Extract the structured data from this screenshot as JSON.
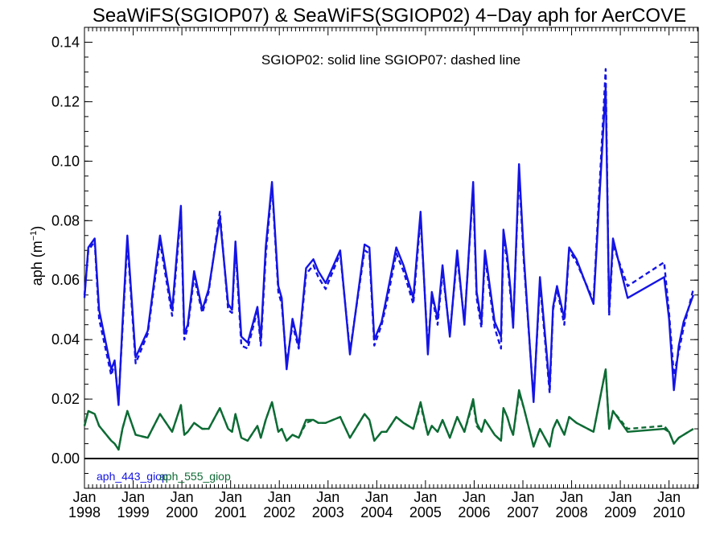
{
  "chart_data": {
    "type": "line",
    "title": "SeaWiFS(SGIOP07) & SeaWiFS(SGIOP02) 4−Day aph for AerCOVE",
    "annotation": "SGIOP02: solid line   SGIOP07: dashed line",
    "ylabel": "aph (m",
    "ylabel_sup": "−1",
    "ylabel_close": ")",
    "xlim": [
      1998.0,
      2010.6
    ],
    "ylim": [
      -0.01,
      0.145
    ],
    "grid": false,
    "zero_line": true,
    "x_ticks": [
      {
        "value": 1998,
        "line1": "Jan",
        "line2": "1998"
      },
      {
        "value": 1999,
        "line1": "Jan",
        "line2": "1999"
      },
      {
        "value": 2000,
        "line1": "Jan",
        "line2": "2000"
      },
      {
        "value": 2001,
        "line1": "Jan",
        "line2": "2001"
      },
      {
        "value": 2002,
        "line1": "Jan",
        "line2": "2002"
      },
      {
        "value": 2003,
        "line1": "Jan",
        "line2": "2003"
      },
      {
        "value": 2004,
        "line1": "Jan",
        "line2": "2004"
      },
      {
        "value": 2005,
        "line1": "Jan",
        "line2": "2005"
      },
      {
        "value": 2006,
        "line1": "Jan",
        "line2": "2006"
      },
      {
        "value": 2007,
        "line1": "Jan",
        "line2": "2007"
      },
      {
        "value": 2008,
        "line1": "Jan",
        "line2": "2008"
      },
      {
        "value": 2009,
        "line1": "Jan",
        "line2": "2009"
      },
      {
        "value": 2010,
        "line1": "Jan",
        "line2": "2010"
      }
    ],
    "y_ticks": [
      {
        "value": 0.0,
        "label": "0.00"
      },
      {
        "value": 0.02,
        "label": "0.02"
      },
      {
        "value": 0.04,
        "label": "0.04"
      },
      {
        "value": 0.06,
        "label": "0.06"
      },
      {
        "value": 0.08,
        "label": "0.08"
      },
      {
        "value": 0.1,
        "label": "0.10"
      },
      {
        "value": 0.12,
        "label": "0.12"
      },
      {
        "value": 0.14,
        "label": "0.14"
      }
    ],
    "legend": [
      {
        "label": "aph_443_giop",
        "color": "#1414e6"
      },
      {
        "label": "aph_555_giop",
        "color": "#0d6b34"
      }
    ],
    "series": [
      {
        "name": "aph_443_giop",
        "color": "#1414e6",
        "style": "solid",
        "x": [
          1998.0,
          1998.08,
          1998.21,
          1998.3,
          1998.55,
          1998.62,
          1998.7,
          1998.78,
          1998.88,
          1999.05,
          1999.3,
          1999.55,
          1999.8,
          1999.98,
          2000.05,
          2000.12,
          2000.25,
          2000.42,
          2000.55,
          2000.78,
          2000.95,
          2001.03,
          2001.1,
          2001.22,
          2001.35,
          2001.55,
          2001.62,
          2001.72,
          2001.85,
          2001.98,
          2002.05,
          2002.15,
          2002.27,
          2002.4,
          2002.55,
          2002.7,
          2002.8,
          2002.95,
          2003.25,
          2003.45,
          2003.75,
          2003.85,
          2003.95,
          2004.1,
          2004.2,
          2004.4,
          2004.55,
          2004.75,
          2004.9,
          2005.05,
          2005.13,
          2005.25,
          2005.35,
          2005.5,
          2005.65,
          2005.8,
          2005.98,
          2006.05,
          2006.15,
          2006.22,
          2006.42,
          2006.55,
          2006.6,
          2006.68,
          2006.75,
          2006.8,
          2006.92,
          2007.02,
          2007.22,
          2007.35,
          2007.55,
          2007.62,
          2007.7,
          2007.85,
          2007.95,
          2008.1,
          2008.45,
          2008.7,
          2008.77,
          2008.85,
          2009.15,
          2009.9,
          2010.0,
          2010.1,
          2010.2,
          2010.3,
          2010.5
        ],
        "y": [
          0.054,
          0.071,
          0.074,
          0.05,
          0.03,
          0.033,
          0.018,
          0.045,
          0.075,
          0.034,
          0.043,
          0.075,
          0.05,
          0.085,
          0.042,
          0.045,
          0.063,
          0.05,
          0.057,
          0.081,
          0.052,
          0.05,
          0.073,
          0.041,
          0.039,
          0.051,
          0.04,
          0.071,
          0.093,
          0.058,
          0.054,
          0.03,
          0.047,
          0.038,
          0.064,
          0.067,
          0.063,
          0.059,
          0.07,
          0.035,
          0.072,
          0.071,
          0.04,
          0.046,
          0.054,
          0.071,
          0.065,
          0.054,
          0.083,
          0.035,
          0.056,
          0.047,
          0.065,
          0.041,
          0.07,
          0.045,
          0.093,
          0.056,
          0.046,
          0.07,
          0.046,
          0.041,
          0.077,
          0.068,
          0.056,
          0.044,
          0.099,
          0.068,
          0.019,
          0.061,
          0.024,
          0.051,
          0.058,
          0.047,
          0.071,
          0.067,
          0.052,
          0.125,
          0.05,
          0.074,
          0.054,
          0.061,
          0.047,
          0.023,
          0.038,
          0.046,
          0.055
        ]
      },
      {
        "name": "aph_443_giop",
        "color": "#1414e6",
        "style": "dashed",
        "x": [
          1998.0,
          1998.08,
          1998.21,
          1998.3,
          1998.55,
          1998.62,
          1998.7,
          1998.78,
          1998.88,
          1999.05,
          1999.3,
          1999.55,
          1999.8,
          1999.98,
          2000.05,
          2000.12,
          2000.25,
          2000.42,
          2000.55,
          2000.78,
          2000.95,
          2001.03,
          2001.1,
          2001.22,
          2001.35,
          2001.55,
          2001.62,
          2001.72,
          2001.85,
          2001.98,
          2002.05,
          2002.15,
          2002.27,
          2002.4,
          2002.55,
          2002.7,
          2002.8,
          2002.95,
          2003.25,
          2003.45,
          2003.75,
          2003.85,
          2003.95,
          2004.1,
          2004.2,
          2004.4,
          2004.55,
          2004.75,
          2004.9,
          2005.05,
          2005.13,
          2005.25,
          2005.35,
          2005.5,
          2005.65,
          2005.8,
          2005.98,
          2006.05,
          2006.15,
          2006.22,
          2006.42,
          2006.55,
          2006.6,
          2006.68,
          2006.75,
          2006.8,
          2006.92,
          2007.02,
          2007.22,
          2007.35,
          2007.55,
          2007.62,
          2007.7,
          2007.85,
          2007.95,
          2008.1,
          2008.45,
          2008.7,
          2008.77,
          2008.85,
          2009.15,
          2009.9,
          2010.0,
          2010.1,
          2010.2,
          2010.3,
          2010.5
        ],
        "y": [
          0.055,
          0.07,
          0.073,
          0.047,
          0.028,
          0.032,
          0.02,
          0.043,
          0.073,
          0.032,
          0.042,
          0.073,
          0.048,
          0.083,
          0.04,
          0.044,
          0.061,
          0.049,
          0.056,
          0.083,
          0.05,
          0.049,
          0.071,
          0.038,
          0.037,
          0.05,
          0.038,
          0.068,
          0.092,
          0.056,
          0.052,
          0.032,
          0.045,
          0.037,
          0.062,
          0.065,
          0.061,
          0.057,
          0.069,
          0.036,
          0.07,
          0.069,
          0.038,
          0.045,
          0.052,
          0.069,
          0.063,
          0.052,
          0.081,
          0.037,
          0.055,
          0.045,
          0.063,
          0.042,
          0.068,
          0.046,
          0.091,
          0.054,
          0.044,
          0.068,
          0.044,
          0.037,
          0.075,
          0.066,
          0.054,
          0.045,
          0.096,
          0.066,
          0.02,
          0.059,
          0.022,
          0.05,
          0.057,
          0.045,
          0.07,
          0.066,
          0.053,
          0.131,
          0.048,
          0.072,
          0.058,
          0.066,
          0.049,
          0.028,
          0.036,
          0.044,
          0.057
        ]
      },
      {
        "name": "aph_555_giop",
        "color": "#0d6b34",
        "style": "solid",
        "x": [
          1998.0,
          1998.08,
          1998.21,
          1998.3,
          1998.55,
          1998.62,
          1998.7,
          1998.78,
          1998.88,
          1999.05,
          1999.3,
          1999.55,
          1999.8,
          1999.98,
          2000.05,
          2000.12,
          2000.25,
          2000.42,
          2000.55,
          2000.78,
          2000.95,
          2001.03,
          2001.1,
          2001.22,
          2001.35,
          2001.55,
          2001.62,
          2001.72,
          2001.85,
          2001.98,
          2002.05,
          2002.15,
          2002.27,
          2002.4,
          2002.55,
          2002.7,
          2002.8,
          2002.95,
          2003.25,
          2003.45,
          2003.75,
          2003.85,
          2003.95,
          2004.1,
          2004.2,
          2004.4,
          2004.55,
          2004.75,
          2004.9,
          2005.05,
          2005.13,
          2005.25,
          2005.35,
          2005.5,
          2005.65,
          2005.8,
          2005.98,
          2006.05,
          2006.15,
          2006.22,
          2006.42,
          2006.55,
          2006.6,
          2006.68,
          2006.75,
          2006.8,
          2006.92,
          2007.02,
          2007.22,
          2007.35,
          2007.55,
          2007.62,
          2007.7,
          2007.85,
          2007.95,
          2008.1,
          2008.45,
          2008.7,
          2008.77,
          2008.85,
          2009.15,
          2009.9,
          2010.0,
          2010.1,
          2010.2,
          2010.3,
          2010.5
        ],
        "y": [
          0.011,
          0.016,
          0.015,
          0.011,
          0.006,
          0.005,
          0.003,
          0.01,
          0.016,
          0.008,
          0.007,
          0.015,
          0.009,
          0.018,
          0.008,
          0.009,
          0.012,
          0.01,
          0.01,
          0.017,
          0.01,
          0.009,
          0.015,
          0.007,
          0.006,
          0.011,
          0.007,
          0.013,
          0.019,
          0.009,
          0.01,
          0.006,
          0.008,
          0.007,
          0.013,
          0.013,
          0.012,
          0.012,
          0.014,
          0.007,
          0.015,
          0.013,
          0.006,
          0.009,
          0.009,
          0.014,
          0.012,
          0.01,
          0.019,
          0.008,
          0.011,
          0.009,
          0.013,
          0.007,
          0.014,
          0.009,
          0.02,
          0.012,
          0.009,
          0.013,
          0.008,
          0.006,
          0.017,
          0.014,
          0.01,
          0.008,
          0.023,
          0.017,
          0.004,
          0.01,
          0.004,
          0.01,
          0.013,
          0.008,
          0.014,
          0.012,
          0.009,
          0.03,
          0.01,
          0.016,
          0.009,
          0.01,
          0.009,
          0.005,
          0.007,
          0.008,
          0.01
        ]
      },
      {
        "name": "aph_555_giop",
        "color": "#0d6b34",
        "style": "dashed",
        "x": [
          1998.0,
          1998.08,
          1998.21,
          1998.3,
          1998.55,
          1998.62,
          1998.7,
          1998.78,
          1998.88,
          1999.05,
          1999.3,
          1999.55,
          1999.8,
          1999.98,
          2000.05,
          2000.12,
          2000.25,
          2000.42,
          2000.55,
          2000.78,
          2000.95,
          2001.03,
          2001.1,
          2001.22,
          2001.35,
          2001.55,
          2001.62,
          2001.72,
          2001.85,
          2001.98,
          2002.05,
          2002.15,
          2002.27,
          2002.4,
          2002.55,
          2002.7,
          2002.8,
          2002.95,
          2003.25,
          2003.45,
          2003.75,
          2003.85,
          2003.95,
          2004.1,
          2004.2,
          2004.4,
          2004.55,
          2004.75,
          2004.9,
          2005.05,
          2005.13,
          2005.25,
          2005.35,
          2005.5,
          2005.65,
          2005.8,
          2005.98,
          2006.05,
          2006.15,
          2006.22,
          2006.42,
          2006.55,
          2006.6,
          2006.68,
          2006.75,
          2006.8,
          2006.92,
          2007.02,
          2007.22,
          2007.35,
          2007.55,
          2007.62,
          2007.7,
          2007.85,
          2007.95,
          2008.1,
          2008.45,
          2008.7,
          2008.77,
          2008.85,
          2009.15,
          2009.9,
          2010.0,
          2010.1,
          2010.2,
          2010.3,
          2010.5
        ],
        "y": [
          0.011,
          0.016,
          0.015,
          0.011,
          0.006,
          0.005,
          0.003,
          0.01,
          0.016,
          0.008,
          0.007,
          0.015,
          0.009,
          0.018,
          0.008,
          0.009,
          0.012,
          0.01,
          0.01,
          0.017,
          0.01,
          0.009,
          0.015,
          0.007,
          0.006,
          0.011,
          0.007,
          0.013,
          0.019,
          0.009,
          0.01,
          0.006,
          0.008,
          0.007,
          0.012,
          0.013,
          0.012,
          0.012,
          0.014,
          0.007,
          0.015,
          0.013,
          0.006,
          0.009,
          0.009,
          0.014,
          0.012,
          0.01,
          0.018,
          0.008,
          0.011,
          0.009,
          0.013,
          0.007,
          0.014,
          0.009,
          0.019,
          0.011,
          0.009,
          0.013,
          0.008,
          0.006,
          0.017,
          0.014,
          0.01,
          0.008,
          0.022,
          0.017,
          0.004,
          0.01,
          0.004,
          0.01,
          0.013,
          0.008,
          0.014,
          0.012,
          0.009,
          0.03,
          0.01,
          0.016,
          0.01,
          0.011,
          0.009,
          0.005,
          0.007,
          0.008,
          0.01
        ]
      }
    ]
  }
}
